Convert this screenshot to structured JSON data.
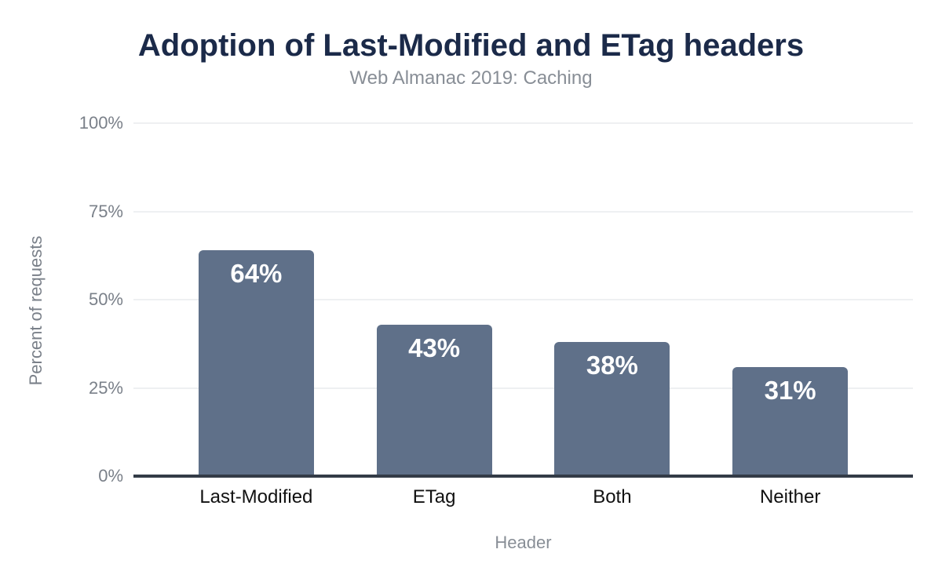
{
  "chart_data": {
    "type": "bar",
    "title": "Adoption of Last-Modified and ETag headers",
    "subtitle": "Web Almanac 2019: Caching",
    "xlabel": "Header",
    "ylabel": "Percent of requests",
    "categories": [
      "Last-Modified",
      "ETag",
      "Both",
      "Neither"
    ],
    "values": [
      64,
      43,
      38,
      31
    ],
    "value_labels": [
      "64%",
      "43%",
      "38%",
      "31%"
    ],
    "ylim": [
      0,
      100
    ],
    "yticks": [
      {
        "value": 0,
        "label": "0%"
      },
      {
        "value": 25,
        "label": "25%"
      },
      {
        "value": 50,
        "label": "50%"
      },
      {
        "value": 75,
        "label": "75%"
      },
      {
        "value": 100,
        "label": "100%"
      }
    ],
    "grid": true,
    "legend": "none"
  },
  "colors": {
    "background": "#ffffff",
    "title": "#1b2a49",
    "subtitle": "#888e96",
    "axis_text": "#7a8089",
    "category_text": "#111111",
    "gridline": "#eef0f2",
    "baseline": "#333b47",
    "bar": "#5f7089",
    "value_label": "#ffffff"
  }
}
